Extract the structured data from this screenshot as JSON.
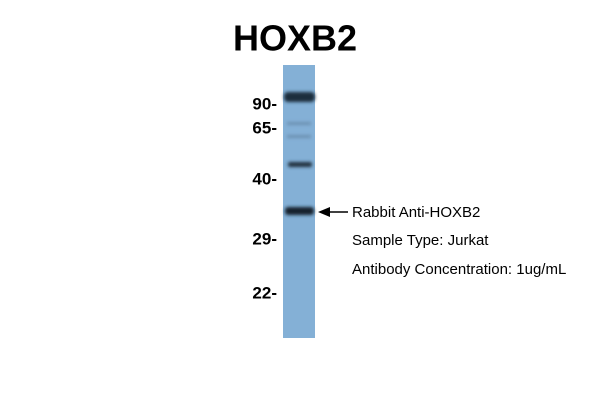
{
  "header": {
    "title": "HOXB2"
  },
  "markers": [
    "90-",
    "65-",
    "40-",
    "29-",
    "22-"
  ],
  "annotations": [
    "Rabbit Anti-HOXB2",
    "Sample Type: Jurkat",
    "Antibody Concentration: 1ug/mL"
  ]
}
